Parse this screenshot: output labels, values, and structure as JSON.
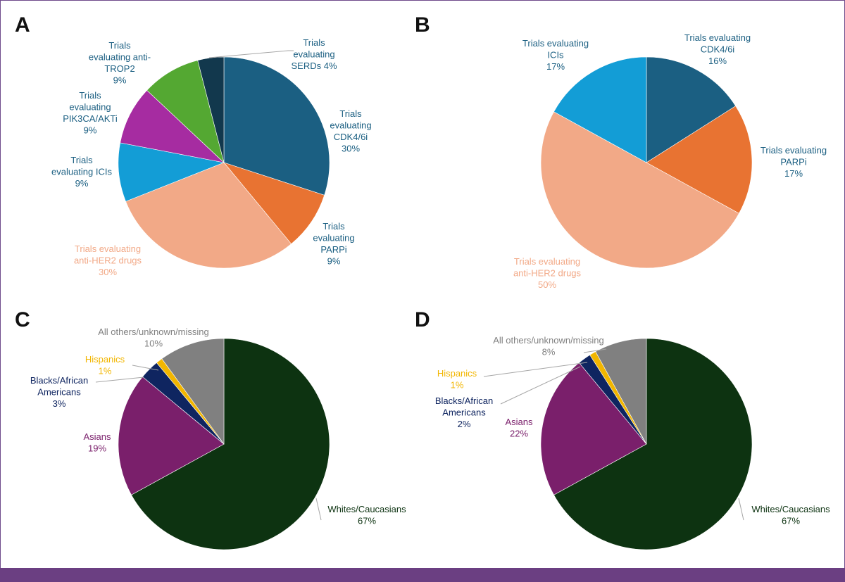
{
  "chart_data": [
    {
      "type": "pie",
      "panel": "A",
      "slices": [
        {
          "label": [
            "Trials",
            "evaluating",
            "CDK4/6i",
            "30%"
          ],
          "value": 30,
          "color": "#1b5f82",
          "text_color": "#1b5f82"
        },
        {
          "label": [
            "Trials",
            "evaluating",
            "PARPi",
            "9%"
          ],
          "value": 9,
          "color": "#e87332",
          "text_color": "#1b5f82"
        },
        {
          "label": [
            "Trials evaluating",
            "anti-HER2 drugs",
            "30%"
          ],
          "value": 30,
          "color": "#f2a987",
          "text_color": "#f2a987"
        },
        {
          "label": [
            "Trials",
            "evaluating ICIs",
            "9%"
          ],
          "value": 9,
          "color": "#139dd6",
          "text_color": "#1b5f82"
        },
        {
          "label": [
            "Trials",
            "evaluating",
            "PIK3CA/AKTi",
            "9%"
          ],
          "value": 9,
          "color": "#a62ca1",
          "text_color": "#1b5f82"
        },
        {
          "label": [
            "Trials",
            "evaluating anti-",
            "TROP2",
            "9%"
          ],
          "value": 9,
          "color": "#54a832",
          "text_color": "#1b5f82"
        },
        {
          "label": [
            "Trials",
            "evaluating",
            "SERDs 4%"
          ],
          "value": 4,
          "color": "#12384d",
          "text_color": "#1b5f82"
        }
      ]
    },
    {
      "type": "pie",
      "panel": "B",
      "slices": [
        {
          "label": [
            "Trials evaluating",
            "CDK4/6i",
            "16%"
          ],
          "value": 16,
          "color": "#1b5f82",
          "text_color": "#1b5f82"
        },
        {
          "label": [
            "Trials evaluating",
            "PARPi",
            "17%"
          ],
          "value": 17,
          "color": "#e87332",
          "text_color": "#1b5f82"
        },
        {
          "label": [
            "Trials evaluating",
            "anti-HER2 drugs",
            "50%"
          ],
          "value": 50,
          "color": "#f2a987",
          "text_color": "#f2a987"
        },
        {
          "label": [
            "Trials evaluating",
            "ICIs",
            "17%"
          ],
          "value": 17,
          "color": "#139dd6",
          "text_color": "#1b5f82"
        }
      ]
    },
    {
      "type": "pie",
      "panel": "C",
      "slices": [
        {
          "label": [
            "Whites/Caucasians",
            "67%"
          ],
          "value": 67,
          "color": "#0d3311",
          "text_color": "#0d3311"
        },
        {
          "label": [
            "Asians",
            "19%"
          ],
          "value": 19,
          "color": "#7a1f6b",
          "text_color": "#7a1f6b"
        },
        {
          "label": [
            "Blacks/African",
            "Americans",
            "3%"
          ],
          "value": 3,
          "color": "#0f2560",
          "text_color": "#0f2560"
        },
        {
          "label": [
            "Hispanics",
            "1%"
          ],
          "value": 1,
          "color": "#f2b600",
          "text_color": "#f2b600"
        },
        {
          "label": [
            "All others/unknown/missing",
            "10%"
          ],
          "value": 10,
          "color": "#808080",
          "text_color": "#808080"
        }
      ]
    },
    {
      "type": "pie",
      "panel": "D",
      "slices": [
        {
          "label": [
            "Whites/Caucasians",
            "67%"
          ],
          "value": 67,
          "color": "#0d3311",
          "text_color": "#0d3311"
        },
        {
          "label": [
            "Asians",
            "22%"
          ],
          "value": 22,
          "color": "#7a1f6b",
          "text_color": "#7a1f6b"
        },
        {
          "label": [
            "Blacks/African",
            "Americans",
            "2%"
          ],
          "value": 2,
          "color": "#0f2560",
          "text_color": "#0f2560"
        },
        {
          "label": [
            "Hispanics",
            "1%"
          ],
          "value": 1,
          "color": "#f2b600",
          "text_color": "#f2b600"
        },
        {
          "label": [
            "All others/unknown/missing",
            "8%"
          ],
          "value": 8,
          "color": "#808080",
          "text_color": "#808080"
        }
      ]
    }
  ]
}
